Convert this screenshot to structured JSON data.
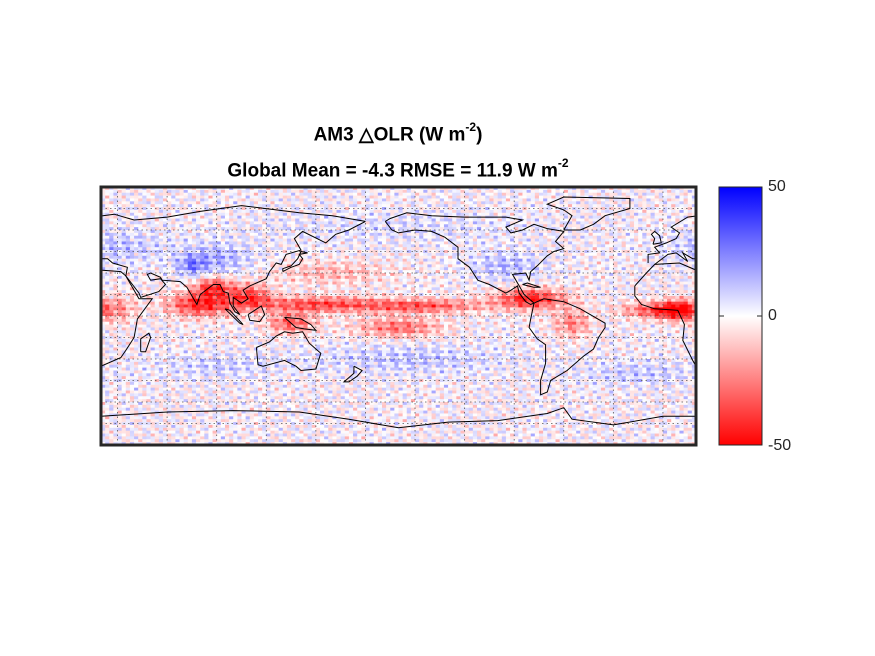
{
  "chart_data": {
    "type": "heatmap",
    "title": {
      "line1": {
        "prefix": "AM3 ",
        "symbol": "△",
        "text": "OLR (W m",
        "exp": "-2",
        "suffix": ")"
      },
      "line2": {
        "text": "Global Mean = -4.3  RMSE = 11.9 W m",
        "exp": "-2"
      }
    },
    "global_mean": -4.3,
    "rmse": 11.9,
    "colorbar": {
      "min": -50,
      "max": 50,
      "ticks": [
        {
          "value": 50,
          "label": "50"
        },
        {
          "value": 0,
          "label": "0"
        },
        {
          "value": -50,
          "label": "-50"
        }
      ],
      "colormap": [
        "#ff0000",
        "#ffffff",
        "#0000ff"
      ]
    },
    "map": {
      "projection": "equirectangular",
      "lon_range": [
        20,
        380
      ],
      "lat_range": [
        -90,
        90
      ],
      "grid_lon_step": 30,
      "grid_lat_step": 15,
      "grid": true
    }
  }
}
